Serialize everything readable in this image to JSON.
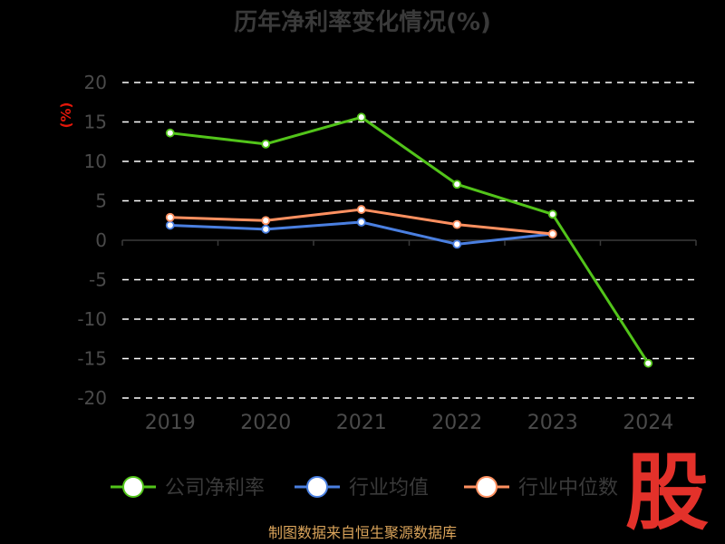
{
  "chart_data": {
    "type": "line",
    "title": "历年净利率变化情况(%)",
    "ylabel": "(%)",
    "categories": [
      "2019",
      "2020",
      "2021",
      "2022",
      "2023",
      "2024"
    ],
    "ylim": [
      -20,
      20
    ],
    "yticks": [
      20,
      15,
      10,
      5,
      0,
      -5,
      -10,
      -15,
      -20
    ],
    "grid": true,
    "legend_position": "bottom",
    "series": [
      {
        "name": "公司净利率",
        "color": "#52c41a",
        "values": [
          13.6,
          12.2,
          15.6,
          7.1,
          3.3,
          -15.6
        ]
      },
      {
        "name": "行业均值",
        "color": "#4a7fe0",
        "values": [
          1.9,
          1.4,
          2.3,
          -0.5,
          0.8,
          null
        ]
      },
      {
        "name": "行业中位数",
        "color": "#ff9060",
        "values": [
          2.9,
          2.5,
          3.9,
          2.0,
          0.8,
          null
        ]
      }
    ]
  },
  "source_text": "制图数据来自恒生聚源数据库",
  "logo_text": "股"
}
